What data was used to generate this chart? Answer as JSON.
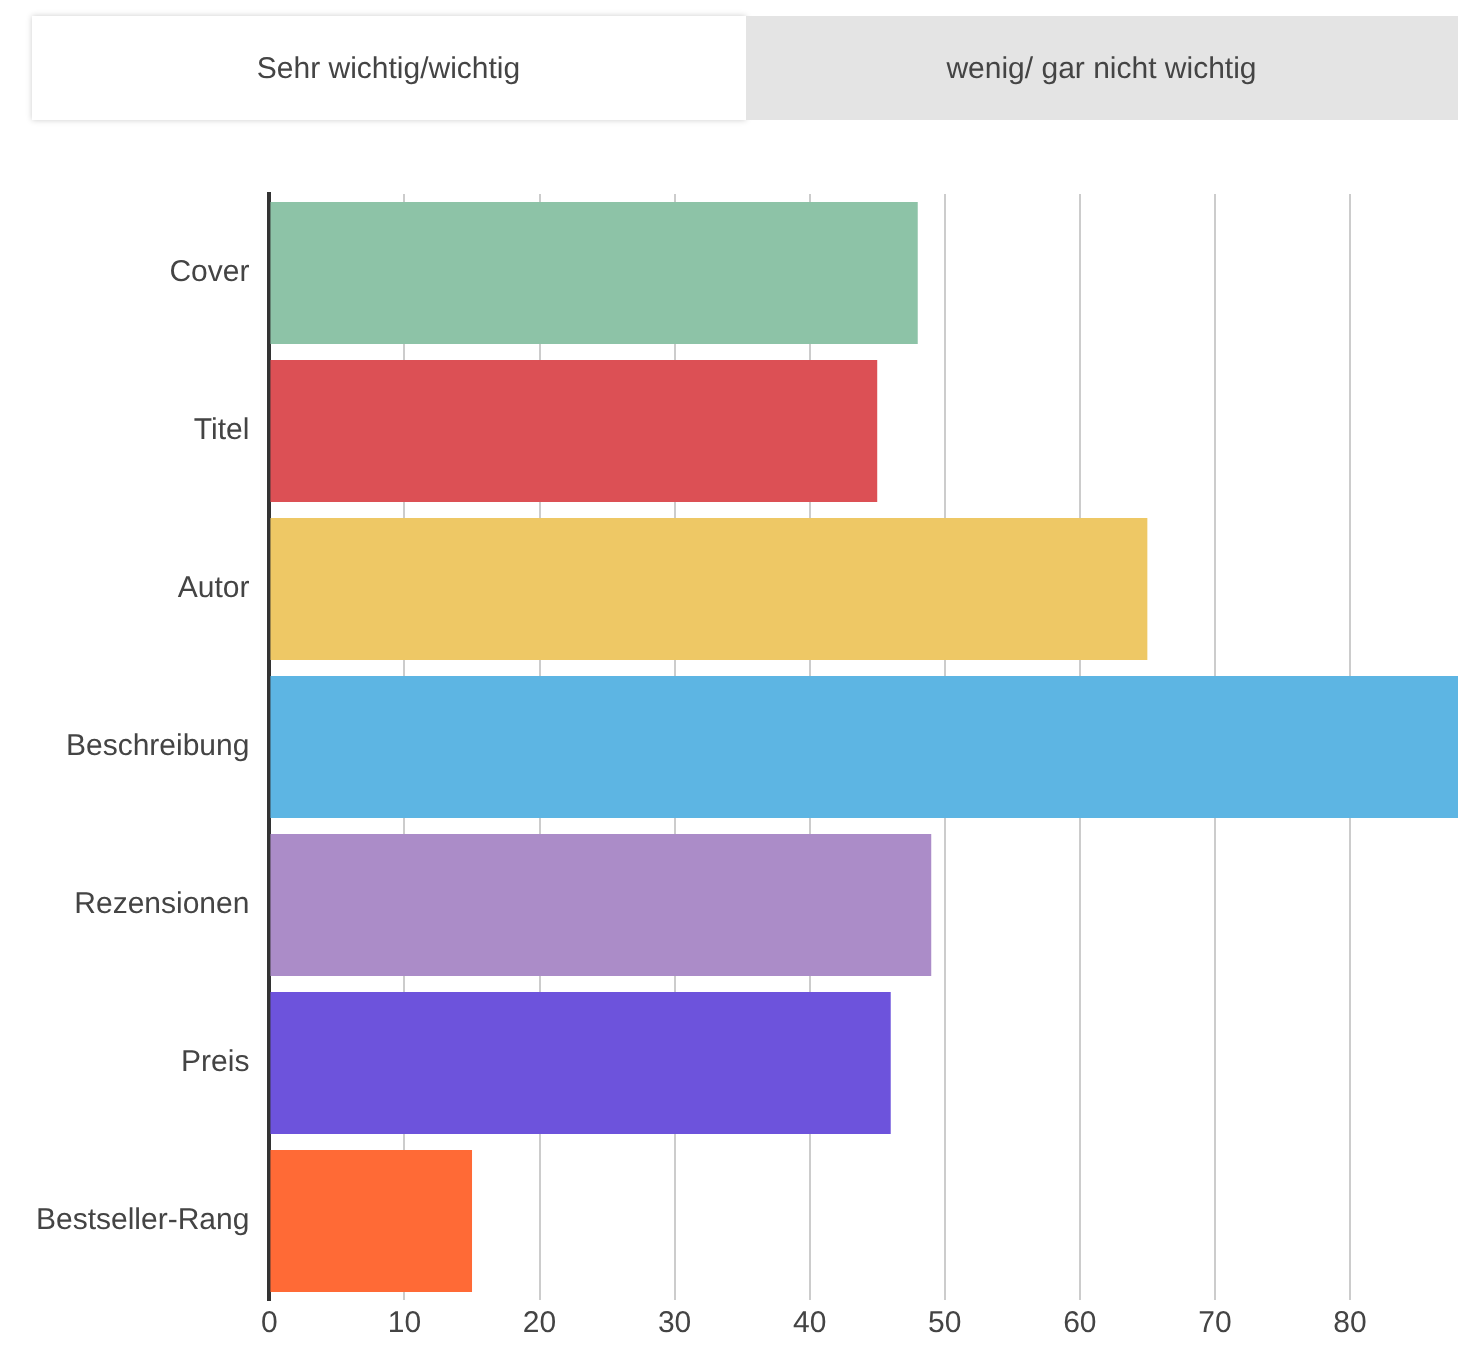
{
  "chart_data": {
    "type": "bar",
    "orientation": "horizontal",
    "categories": [
      "Cover",
      "Titel",
      "Autor",
      "Beschreibung",
      "Rezensionen",
      "Preis",
      "Bestseller-Rang"
    ],
    "values": [
      48,
      45,
      65,
      88,
      49,
      46,
      15
    ],
    "colors": [
      "#8dc3a7",
      "#dc5055",
      "#eec865",
      "#5db5e3",
      "#ab8cc8",
      "#6d53dc",
      "#ff6a36"
    ],
    "xlim": [
      0,
      88
    ],
    "xticks": [
      0,
      10,
      20,
      30,
      40,
      50,
      60,
      70,
      80
    ],
    "grid": "x",
    "legend": false,
    "annotations": [
      "Sehr wichtig/wichtig",
      "wenig/ gar nicht wichtig"
    ]
  }
}
